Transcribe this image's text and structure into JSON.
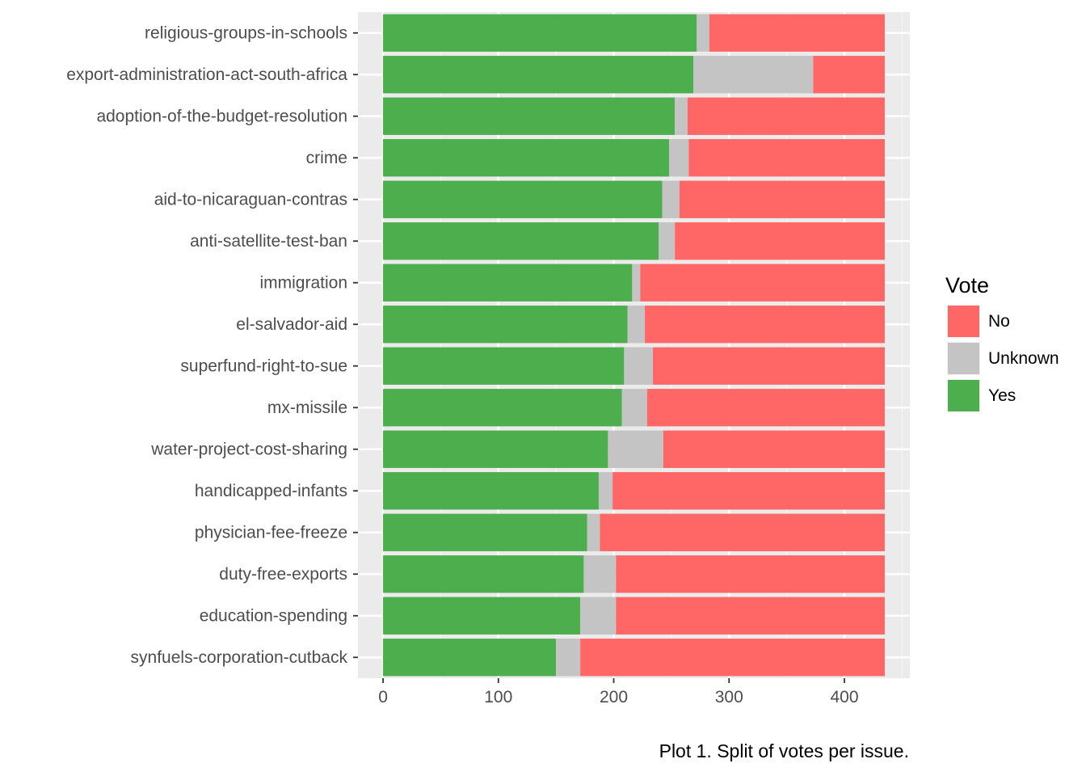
{
  "caption": "Plot 1. Split of votes per issue.",
  "colors": {
    "panel_bg": "#ebebeb",
    "grid_major": "#ffffff",
    "grid_minor": "#f4f4f4",
    "tick_text": "#4d4d4d"
  },
  "chart_data": {
    "type": "bar",
    "orientation": "horizontal",
    "stacked": true,
    "categories": [
      "religious-groups-in-schools",
      "export-administration-act-south-africa",
      "adoption-of-the-budget-resolution",
      "crime",
      "aid-to-nicaraguan-contras",
      "anti-satellite-test-ban",
      "immigration",
      "el-salvador-aid",
      "superfund-right-to-sue",
      "mx-missile",
      "water-project-cost-sharing",
      "handicapped-infants",
      "physician-fee-freeze",
      "duty-free-exports",
      "education-spending",
      "synfuels-corporation-cutback"
    ],
    "series": [
      {
        "name": "Yes",
        "color": "#4cae4c",
        "values": [
          272,
          269,
          253,
          248,
          242,
          239,
          216,
          212,
          209,
          207,
          195,
          187,
          177,
          174,
          171,
          150
        ]
      },
      {
        "name": "Unknown",
        "color": "#c4c4c4",
        "values": [
          11,
          104,
          11,
          17,
          15,
          14,
          7,
          15,
          25,
          22,
          48,
          12,
          11,
          28,
          31,
          21
        ]
      },
      {
        "name": "No",
        "color": "#ff6666",
        "values": [
          152,
          62,
          171,
          170,
          178,
          182,
          212,
          208,
          201,
          206,
          192,
          236,
          247,
          233,
          233,
          264
        ]
      }
    ],
    "xticks": [
      0,
      100,
      200,
      300,
      400
    ],
    "xlim": [
      -21.75,
      456.75
    ],
    "xlabel": "",
    "ylabel": "",
    "grid": true,
    "legend": {
      "title": "Vote",
      "position": "right",
      "order": [
        "No",
        "Unknown",
        "Yes"
      ]
    }
  }
}
